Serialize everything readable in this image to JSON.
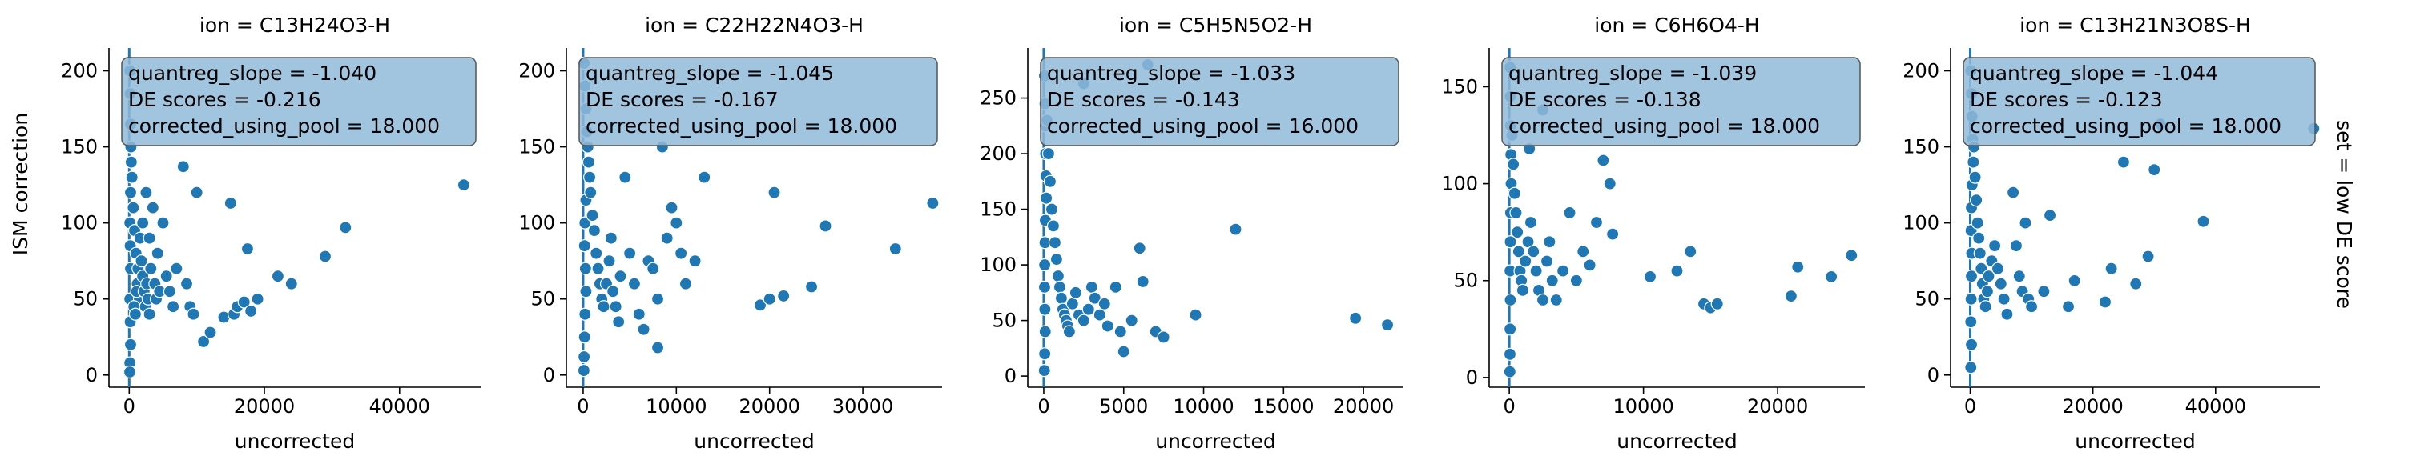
{
  "figure": {
    "ylabel": "ISM correction",
    "row_label": "set = low DE score",
    "marker_color": "#1f77b4",
    "box_color": "#91bad9"
  },
  "chart_data": [
    {
      "type": "scatter",
      "title": "ion = C13H24O3-H",
      "xlabel": "uncorrected",
      "ylabel": "ISM correction",
      "xlim": [
        -3000,
        52000
      ],
      "ylim": [
        -8,
        215
      ],
      "xticks": [
        0,
        20000,
        40000
      ],
      "yticks": [
        0,
        50,
        100,
        150,
        200
      ],
      "annotation": [
        "quantreg_slope = -1.040",
        "DE scores = -0.216",
        "corrected_using_pool = 18.000"
      ],
      "points": [
        [
          100,
          200
        ],
        [
          150,
          185
        ],
        [
          200,
          165
        ],
        [
          250,
          150
        ],
        [
          300,
          140
        ],
        [
          200,
          120
        ],
        [
          100,
          100
        ],
        [
          150,
          85
        ],
        [
          200,
          70
        ],
        [
          100,
          50
        ],
        [
          150,
          35
        ],
        [
          200,
          20
        ],
        [
          100,
          8
        ],
        [
          80,
          2
        ],
        [
          400,
          130
        ],
        [
          600,
          110
        ],
        [
          800,
          95
        ],
        [
          1000,
          80
        ],
        [
          1200,
          60
        ],
        [
          1500,
          50
        ],
        [
          700,
          45
        ],
        [
          900,
          40
        ],
        [
          1100,
          55
        ],
        [
          1300,
          70
        ],
        [
          1600,
          90
        ],
        [
          1800,
          75
        ],
        [
          2000,
          65
        ],
        [
          2200,
          55
        ],
        [
          2400,
          45
        ],
        [
          2600,
          60
        ],
        [
          2800,
          50
        ],
        [
          3000,
          40
        ],
        [
          3200,
          70
        ],
        [
          3500,
          110
        ],
        [
          3800,
          60
        ],
        [
          4000,
          50
        ],
        [
          4200,
          80
        ],
        [
          4500,
          55
        ],
        [
          5000,
          100
        ],
        [
          5500,
          65
        ],
        [
          6000,
          55
        ],
        [
          6500,
          45
        ],
        [
          7000,
          70
        ],
        [
          8000,
          137
        ],
        [
          8500,
          60
        ],
        [
          9000,
          45
        ],
        [
          9500,
          40
        ],
        [
          10000,
          120
        ],
        [
          11000,
          22
        ],
        [
          12000,
          28
        ],
        [
          14000,
          38
        ],
        [
          15000,
          113
        ],
        [
          15500,
          40
        ],
        [
          16000,
          45
        ],
        [
          17000,
          48
        ],
        [
          17500,
          83
        ],
        [
          18000,
          42
        ],
        [
          19000,
          50
        ],
        [
          22000,
          65
        ],
        [
          24000,
          60
        ],
        [
          29000,
          78
        ],
        [
          32000,
          97
        ],
        [
          49500,
          125
        ],
        [
          2000,
          100
        ],
        [
          3000,
          90
        ],
        [
          2500,
          120
        ]
      ]
    },
    {
      "type": "scatter",
      "title": "ion = C22H22N4O3-H",
      "xlabel": "uncorrected",
      "ylabel": "",
      "xlim": [
        -1800,
        38500
      ],
      "ylim": [
        -8,
        215
      ],
      "xticks": [
        0,
        10000,
        20000,
        30000
      ],
      "yticks": [
        0,
        50,
        100,
        150,
        200
      ],
      "annotation": [
        "quantreg_slope = -1.045",
        "DE scores = -0.167",
        "corrected_using_pool = 18.000"
      ],
      "points": [
        [
          100,
          205
        ],
        [
          200,
          190
        ],
        [
          300,
          175
        ],
        [
          400,
          160
        ],
        [
          500,
          150
        ],
        [
          600,
          140
        ],
        [
          700,
          130
        ],
        [
          300,
          115
        ],
        [
          200,
          100
        ],
        [
          150,
          85
        ],
        [
          250,
          70
        ],
        [
          300,
          55
        ],
        [
          200,
          40
        ],
        [
          150,
          25
        ],
        [
          100,
          12
        ],
        [
          80,
          3
        ],
        [
          800,
          120
        ],
        [
          1000,
          105
        ],
        [
          1200,
          95
        ],
        [
          1400,
          80
        ],
        [
          1600,
          70
        ],
        [
          1800,
          60
        ],
        [
          2000,
          50
        ],
        [
          2200,
          45
        ],
        [
          2500,
          60
        ],
        [
          2800,
          75
        ],
        [
          3000,
          90
        ],
        [
          3200,
          55
        ],
        [
          3500,
          45
        ],
        [
          3800,
          35
        ],
        [
          4000,
          65
        ],
        [
          4500,
          130
        ],
        [
          5000,
          80
        ],
        [
          5500,
          60
        ],
        [
          6000,
          40
        ],
        [
          6500,
          30
        ],
        [
          7000,
          75
        ],
        [
          7500,
          70
        ],
        [
          8000,
          50
        ],
        [
          8500,
          150
        ],
        [
          9000,
          90
        ],
        [
          9500,
          110
        ],
        [
          10000,
          100
        ],
        [
          10500,
          80
        ],
        [
          11000,
          60
        ],
        [
          12000,
          75
        ],
        [
          13000,
          130
        ],
        [
          8000,
          18
        ],
        [
          19000,
          46
        ],
        [
          20000,
          50
        ],
        [
          20500,
          120
        ],
        [
          21500,
          52
        ],
        [
          24500,
          58
        ],
        [
          26000,
          98
        ],
        [
          33500,
          83
        ],
        [
          37500,
          113
        ]
      ]
    },
    {
      "type": "scatter",
      "title": "ion = C5H5N5O2-H",
      "xlabel": "uncorrected",
      "ylabel": "",
      "xlim": [
        -1000,
        22500
      ],
      "ylim": [
        -10,
        295
      ],
      "xticks": [
        0,
        5000,
        10000,
        15000,
        20000
      ],
      "yticks": [
        0,
        50,
        100,
        150,
        200,
        250
      ],
      "annotation": [
        "quantreg_slope = -1.033",
        "DE scores = -0.143",
        "corrected_using_pool = 16.000"
      ],
      "points": [
        [
          50,
          270
        ],
        [
          80,
          245
        ],
        [
          100,
          225
        ],
        [
          120,
          200
        ],
        [
          140,
          180
        ],
        [
          160,
          160
        ],
        [
          100,
          140
        ],
        [
          80,
          120
        ],
        [
          60,
          100
        ],
        [
          50,
          80
        ],
        [
          70,
          60
        ],
        [
          90,
          40
        ],
        [
          60,
          20
        ],
        [
          40,
          5
        ],
        [
          200,
          230
        ],
        [
          300,
          200
        ],
        [
          400,
          175
        ],
        [
          500,
          150
        ],
        [
          600,
          135
        ],
        [
          700,
          120
        ],
        [
          800,
          105
        ],
        [
          900,
          90
        ],
        [
          1000,
          80
        ],
        [
          1100,
          70
        ],
        [
          1200,
          60
        ],
        [
          1300,
          55
        ],
        [
          1400,
          50
        ],
        [
          1500,
          45
        ],
        [
          1600,
          40
        ],
        [
          1800,
          65
        ],
        [
          2000,
          75
        ],
        [
          2200,
          55
        ],
        [
          2500,
          50
        ],
        [
          2800,
          60
        ],
        [
          3000,
          80
        ],
        [
          3200,
          70
        ],
        [
          3500,
          55
        ],
        [
          3800,
          65
        ],
        [
          4000,
          45
        ],
        [
          4500,
          80
        ],
        [
          4800,
          40
        ],
        [
          5000,
          22
        ],
        [
          5500,
          50
        ],
        [
          6000,
          115
        ],
        [
          6200,
          85
        ],
        [
          6500,
          280
        ],
        [
          7000,
          40
        ],
        [
          7500,
          35
        ],
        [
          9500,
          55
        ],
        [
          12000,
          132
        ],
        [
          19500,
          52
        ],
        [
          21500,
          46
        ],
        [
          2500,
          263
        ]
      ]
    },
    {
      "type": "scatter",
      "title": "ion = C6H6O4-H",
      "xlabel": "uncorrected",
      "ylabel": "",
      "xlim": [
        -1500,
        26500
      ],
      "ylim": [
        -5,
        170
      ],
      "xticks": [
        0,
        10000,
        20000
      ],
      "yticks": [
        0,
        50,
        100,
        150
      ],
      "annotation": [
        "quantreg_slope = -1.039",
        "DE scores = -0.138",
        "corrected_using_pool = 18.000"
      ],
      "points": [
        [
          60,
          160
        ],
        [
          80,
          145
        ],
        [
          100,
          130
        ],
        [
          120,
          115
        ],
        [
          140,
          100
        ],
        [
          100,
          85
        ],
        [
          80,
          70
        ],
        [
          60,
          55
        ],
        [
          80,
          40
        ],
        [
          60,
          25
        ],
        [
          50,
          12
        ],
        [
          40,
          3
        ],
        [
          200,
          125
        ],
        [
          300,
          110
        ],
        [
          400,
          95
        ],
        [
          500,
          85
        ],
        [
          600,
          75
        ],
        [
          700,
          65
        ],
        [
          800,
          55
        ],
        [
          900,
          50
        ],
        [
          1000,
          45
        ],
        [
          1200,
          60
        ],
        [
          1400,
          70
        ],
        [
          1600,
          80
        ],
        [
          1800,
          65
        ],
        [
          2000,
          55
        ],
        [
          2200,
          45
        ],
        [
          2500,
          40
        ],
        [
          2800,
          60
        ],
        [
          3000,
          70
        ],
        [
          3200,
          50
        ],
        [
          3500,
          40
        ],
        [
          4000,
          55
        ],
        [
          4500,
          85
        ],
        [
          5000,
          50
        ],
        [
          5500,
          65
        ],
        [
          6000,
          58
        ],
        [
          6500,
          80
        ],
        [
          7000,
          112
        ],
        [
          7500,
          100
        ],
        [
          7700,
          74
        ],
        [
          2500,
          138
        ],
        [
          1500,
          118
        ],
        [
          10500,
          52
        ],
        [
          12500,
          55
        ],
        [
          13500,
          65
        ],
        [
          14500,
          38
        ],
        [
          15000,
          36
        ],
        [
          15500,
          38
        ],
        [
          21000,
          42
        ],
        [
          21500,
          57
        ],
        [
          24000,
          52
        ],
        [
          25500,
          63
        ]
      ]
    },
    {
      "type": "scatter",
      "title": "ion = C13H21N3O8S-H",
      "xlabel": "uncorrected",
      "ylabel": "",
      "xlim": [
        -3200,
        57000
      ],
      "ylim": [
        -8,
        215
      ],
      "xticks": [
        0,
        20000,
        40000
      ],
      "yticks": [
        0,
        50,
        100,
        150,
        200
      ],
      "annotation": [
        "quantreg_slope = -1.044",
        "DE scores = -0.123",
        "corrected_using_pool = 18.000"
      ],
      "points": [
        [
          100,
          200
        ],
        [
          200,
          185
        ],
        [
          300,
          170
        ],
        [
          400,
          155
        ],
        [
          500,
          140
        ],
        [
          300,
          125
        ],
        [
          200,
          110
        ],
        [
          150,
          95
        ],
        [
          250,
          80
        ],
        [
          200,
          65
        ],
        [
          150,
          50
        ],
        [
          100,
          35
        ],
        [
          200,
          20
        ],
        [
          100,
          5
        ],
        [
          600,
          150
        ],
        [
          800,
          130
        ],
        [
          1000,
          115
        ],
        [
          1200,
          100
        ],
        [
          1400,
          90
        ],
        [
          1600,
          80
        ],
        [
          1800,
          70
        ],
        [
          2000,
          60
        ],
        [
          2200,
          50
        ],
        [
          2500,
          45
        ],
        [
          2800,
          55
        ],
        [
          3000,
          65
        ],
        [
          3500,
          75
        ],
        [
          4000,
          85
        ],
        [
          4500,
          70
        ],
        [
          5000,
          60
        ],
        [
          5500,
          50
        ],
        [
          6000,
          40
        ],
        [
          7000,
          120
        ],
        [
          7500,
          85
        ],
        [
          8000,
          65
        ],
        [
          8500,
          55
        ],
        [
          9000,
          100
        ],
        [
          9500,
          50
        ],
        [
          10000,
          45
        ],
        [
          12000,
          55
        ],
        [
          13000,
          105
        ],
        [
          16000,
          45
        ],
        [
          17000,
          62
        ],
        [
          22000,
          48
        ],
        [
          23000,
          70
        ],
        [
          25000,
          140
        ],
        [
          27000,
          60
        ],
        [
          29000,
          78
        ],
        [
          30000,
          135
        ],
        [
          31000,
          165
        ],
        [
          38000,
          101
        ],
        [
          56000,
          162
        ]
      ]
    }
  ]
}
